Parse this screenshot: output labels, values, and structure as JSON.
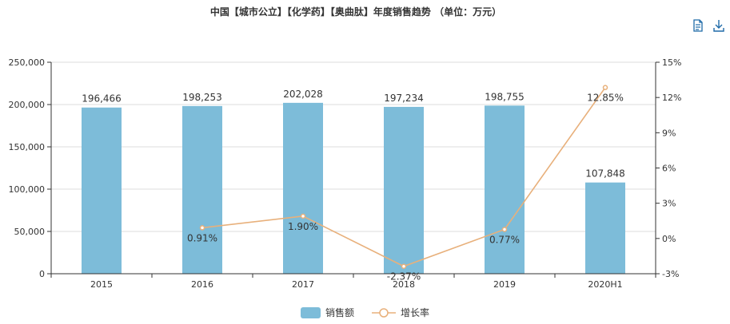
{
  "colors": {
    "bar": "#7dbcd9",
    "line": "#e8b07b",
    "axis": "#333333",
    "grid": "#dddddd",
    "toolbox": "#1e6aa8"
  },
  "toolbox": {
    "icons": [
      "data-view-icon",
      "download-icon"
    ]
  },
  "chart_data": {
    "type": "bar",
    "title": "中国【城市公立】【化学药】【奥曲肽】年度销售趋势 （单位：万元）",
    "categories": [
      "2015",
      "2016",
      "2017",
      "2018",
      "2019",
      "2020H1"
    ],
    "series": [
      {
        "name": "销售额",
        "type": "bar",
        "values": [
          196466,
          198253,
          202028,
          197234,
          198755,
          107848
        ],
        "labels": [
          "196,466",
          "198,253",
          "202,028",
          "197,234",
          "198,755",
          "107,848"
        ]
      },
      {
        "name": "增长率",
        "type": "line",
        "values": [
          null,
          0.91,
          1.9,
          -2.37,
          0.77,
          12.85
        ],
        "labels": [
          "",
          "0.91%",
          "1.90%",
          "-2.37%",
          "0.77%",
          "12.85%"
        ]
      }
    ],
    "left_axis": {
      "ylim": [
        0,
        250000
      ],
      "ticks": [
        "0",
        "50,000",
        "100,000",
        "150,000",
        "200,000",
        "250,000"
      ]
    },
    "right_axis": {
      "ylim": [
        -3,
        15
      ],
      "ticks": [
        "-3%",
        "0%",
        "3%",
        "6%",
        "9%",
        "12%",
        "15%"
      ]
    },
    "grid": true,
    "legend": "bottom-center"
  }
}
